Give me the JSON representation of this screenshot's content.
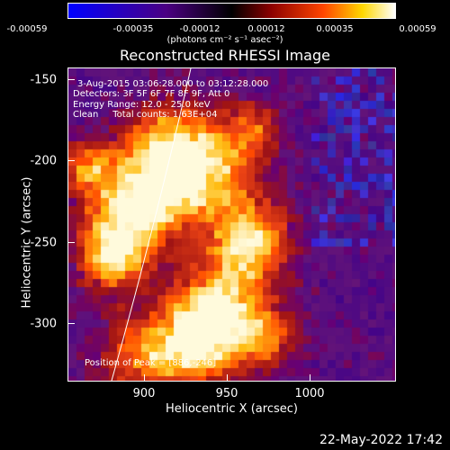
{
  "colorbar": {
    "tick_labels": [
      "-0.00059",
      "-0.00035",
      "-0.00012",
      "0.00012",
      "0.00035",
      "0.00059"
    ],
    "units_label": "(photons cm⁻² s⁻¹ asec⁻²)",
    "colormap_stops": [
      "#0000ff",
      "#4b0082",
      "#000000",
      "#8b0000",
      "#ff4500",
      "#ffd700",
      "#ffffff"
    ]
  },
  "title": "Reconstructed RHESSI Image",
  "overlay": {
    "line1": "3-Aug-2015 03:06:28.000 to 03:12:28.000",
    "line2": "Detectors: 3F 5F 6F 7F 8F 9F, Att 0",
    "line3": "Energy Range: 12.0 - 25.0 keV",
    "line4": "Clean     Total counts: 1.63E+04",
    "peak": "Position of Peak = [886,-246]"
  },
  "axes": {
    "y_label": "Heliocentric Y (arcsec)",
    "x_label": "Heliocentric X (arcsec)",
    "y_ticks": [
      "-150",
      "-200",
      "-250",
      "-300"
    ],
    "x_ticks": [
      "900",
      "950",
      "1000"
    ]
  },
  "timestamp": "22-May-2022 17:42",
  "colors": {
    "background": "#000000",
    "text": "#ffffff"
  }
}
